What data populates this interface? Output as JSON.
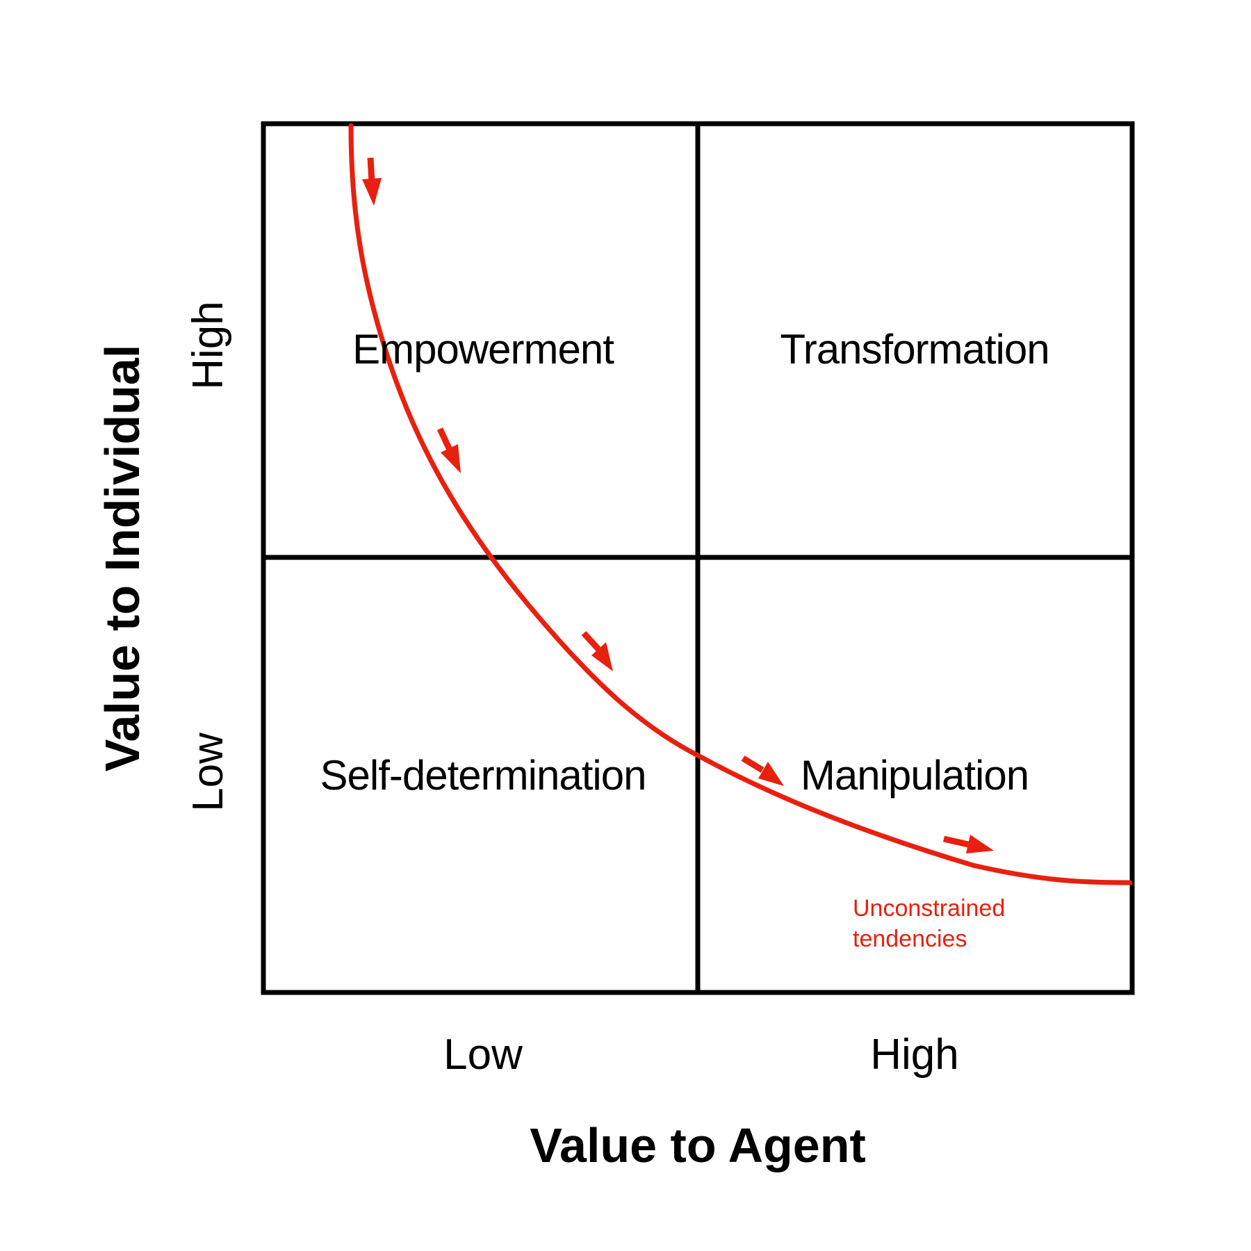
{
  "quadrants": {
    "top_left": "Empowerment",
    "top_right": "Transformation",
    "bottom_left": "Self-determination",
    "bottom_right": "Manipulation"
  },
  "x_axis": {
    "title": "Value to Agent",
    "low_label": "Low",
    "high_label": "High"
  },
  "y_axis": {
    "title": "Value to Individual",
    "low_label": "Low",
    "high_label": "High"
  },
  "curve": {
    "label_line1": "Unconstrained",
    "label_line2": "tendencies",
    "color": "#e8200f"
  },
  "colors": {
    "grid": "#000000",
    "curve": "#e8200f",
    "background": "#ffffff"
  }
}
